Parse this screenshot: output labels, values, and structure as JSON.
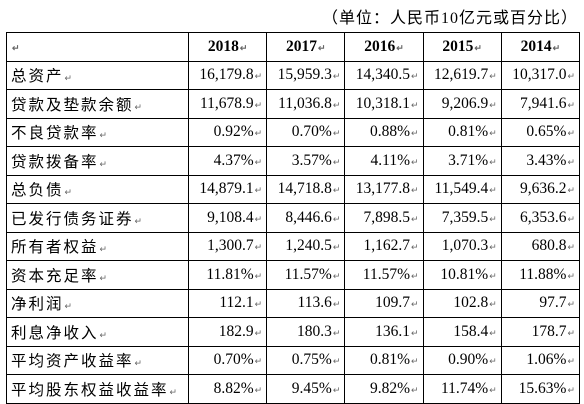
{
  "unit_note": "（单位：人民币10亿元或百分比）",
  "table": {
    "header": [
      "2018",
      "2017",
      "2016",
      "2015",
      "2014"
    ],
    "rows": [
      [
        "总资产",
        "16,179.8",
        "15,959.3",
        "14,340.5",
        "12,619.7",
        "10,317.0"
      ],
      [
        "贷款及垫款余额",
        "11,678.9",
        "11,036.8",
        "10,318.1",
        "9,206.9",
        "7,941.6"
      ],
      [
        "不良贷款率",
        "0.92%",
        "0.70%",
        "0.88%",
        "0.81%",
        "0.65%"
      ],
      [
        "贷款拨备率",
        "4.37%",
        "3.57%",
        "4.11%",
        "3.71%",
        "3.43%"
      ],
      [
        "总负债",
        "14,879.1",
        "14,718.8",
        "13,177.8",
        "11,549.4",
        "9,636.2"
      ],
      [
        "已发行债务证券",
        "9,108.4",
        "8,446.6",
        "7,898.5",
        "7,359.5",
        "6,353.6"
      ],
      [
        "所有者权益",
        "1,300.7",
        "1,240.5",
        "1,162.7",
        "1,070.3",
        "680.8"
      ],
      [
        "资本充足率",
        "11.81%",
        "11.57%",
        "11.57%",
        "10.81%",
        "11.88%"
      ],
      [
        "净利润",
        "112.1",
        "113.6",
        "109.7",
        "102.8",
        "97.7"
      ],
      [
        "利息净收入",
        "182.9",
        "180.3",
        "136.1",
        "158.4",
        "178.7"
      ],
      [
        "平均资产收益率",
        "0.70%",
        "0.75%",
        "0.81%",
        "0.90%",
        "1.06%"
      ],
      [
        "平均股东权益收益率",
        "8.82%",
        "9.45%",
        "9.82%",
        "11.74%",
        "15.63%"
      ]
    ]
  }
}
